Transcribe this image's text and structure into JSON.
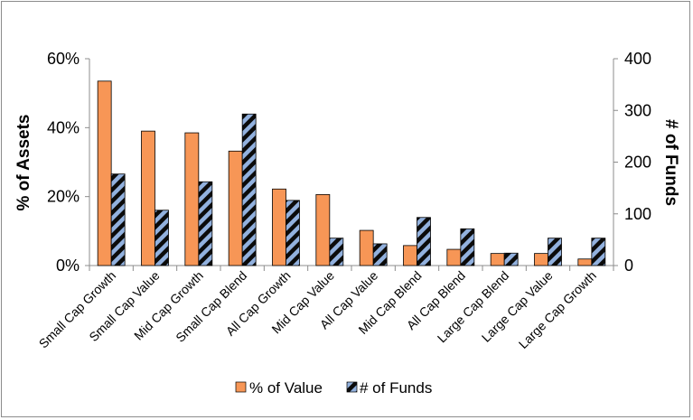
{
  "chart_data": {
    "type": "bar",
    "categories": [
      "Small Cap Growth",
      "Small Cap Value",
      "Mid Cap Growth",
      "Small Cap Blend",
      "All Cap Growth",
      "Mid Cap Value",
      "All Cap Value",
      "Mid Cap Blend",
      "All Cap Blend",
      "Large Cap Blend",
      "Large Cap Value",
      "Large Cap Growth"
    ],
    "series": [
      {
        "name": "% of Value",
        "axis": "left",
        "color": "#f79656",
        "values": [
          0.535,
          0.39,
          0.385,
          0.332,
          0.222,
          0.206,
          0.102,
          0.058,
          0.047,
          0.035,
          0.035,
          0.019
        ]
      },
      {
        "name": "# of Funds",
        "axis": "right",
        "color": "#92b1de",
        "pattern": "diagonal-black-stripes",
        "values": [
          177,
          107,
          162,
          293,
          126,
          53,
          42,
          93,
          71,
          24,
          53,
          53
        ]
      }
    ],
    "ylabel": "% of Assets",
    "y2label": "# of Funds",
    "ylim": [
      0,
      0.6
    ],
    "y2lim": [
      0,
      400
    ],
    "yticks": [
      "0%",
      "20%",
      "40%",
      "60%"
    ],
    "y2ticks": [
      "0",
      "100",
      "200",
      "300",
      "400"
    ],
    "legend_position": "bottom",
    "grid": false
  }
}
